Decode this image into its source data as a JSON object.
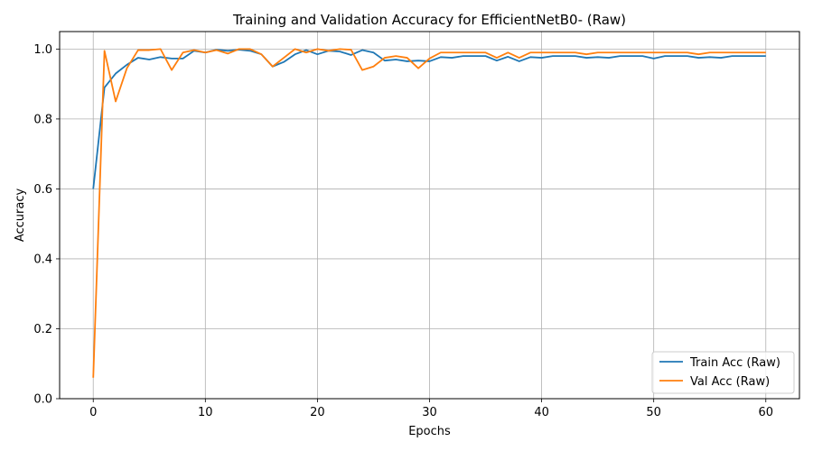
{
  "chart_data": {
    "type": "line",
    "title": "Training and Validation Accuracy for EfficientNetB0- (Raw)",
    "xlabel": "Epochs",
    "ylabel": "Accuracy",
    "xlim": [
      -3,
      63
    ],
    "ylim": [
      0.0,
      1.05
    ],
    "xticks": [
      0,
      10,
      20,
      30,
      40,
      50,
      60
    ],
    "yticks": [
      0.0,
      0.2,
      0.4,
      0.6,
      0.8,
      1.0
    ],
    "xtick_labels": [
      "0",
      "10",
      "20",
      "30",
      "40",
      "50",
      "60"
    ],
    "ytick_labels": [
      "0.0",
      "0.2",
      "0.4",
      "0.6",
      "0.8",
      "1.0"
    ],
    "grid": true,
    "legend_position": "bottom-right",
    "series": [
      {
        "name": "Train Acc (Raw)",
        "color": "#1f77b4",
        "x": [
          0,
          1,
          2,
          3,
          4,
          5,
          6,
          7,
          8,
          9,
          10,
          11,
          12,
          13,
          14,
          15,
          16,
          17,
          18,
          19,
          20,
          21,
          22,
          23,
          24,
          25,
          26,
          27,
          28,
          29,
          30,
          31,
          32,
          33,
          34,
          35,
          36,
          37,
          38,
          39,
          40,
          41,
          42,
          43,
          44,
          45,
          46,
          47,
          48,
          49,
          50,
          51,
          52,
          53,
          54,
          55,
          56,
          57,
          58,
          59,
          60
        ],
        "values": [
          0.6,
          0.89,
          0.93,
          0.955,
          0.975,
          0.97,
          0.977,
          0.973,
          0.973,
          0.995,
          0.99,
          0.998,
          0.995,
          0.998,
          0.995,
          0.985,
          0.95,
          0.963,
          0.985,
          0.997,
          0.985,
          0.995,
          0.993,
          0.983,
          0.997,
          0.99,
          0.967,
          0.97,
          0.965,
          0.967,
          0.965,
          0.977,
          0.975,
          0.98,
          0.98,
          0.98,
          0.967,
          0.978,
          0.965,
          0.977,
          0.975,
          0.98,
          0.98,
          0.98,
          0.975,
          0.977,
          0.975,
          0.98,
          0.98,
          0.98,
          0.973,
          0.98,
          0.98,
          0.98,
          0.975,
          0.977,
          0.975,
          0.98,
          0.98,
          0.98,
          0.98
        ]
      },
      {
        "name": "Val Acc (Raw)",
        "color": "#ff7f0e",
        "x": [
          0,
          1,
          2,
          3,
          4,
          5,
          6,
          7,
          8,
          9,
          10,
          11,
          12,
          13,
          14,
          15,
          16,
          17,
          18,
          19,
          20,
          21,
          22,
          23,
          24,
          25,
          26,
          27,
          28,
          29,
          30,
          31,
          32,
          33,
          34,
          35,
          36,
          37,
          38,
          39,
          40,
          41,
          42,
          43,
          44,
          45,
          46,
          47,
          48,
          49,
          50,
          51,
          52,
          53,
          54,
          55,
          56,
          57,
          58,
          59,
          60
        ],
        "values": [
          0.06,
          0.995,
          0.85,
          0.945,
          0.997,
          0.997,
          1.0,
          0.94,
          0.99,
          0.997,
          0.99,
          0.997,
          0.987,
          1.0,
          1.0,
          0.985,
          0.95,
          0.975,
          1.0,
          0.99,
          1.0,
          0.995,
          1.0,
          0.998,
          0.94,
          0.95,
          0.975,
          0.98,
          0.975,
          0.945,
          0.973,
          0.99,
          0.99,
          0.99,
          0.99,
          0.99,
          0.975,
          0.99,
          0.975,
          0.99,
          0.99,
          0.99,
          0.99,
          0.99,
          0.985,
          0.99,
          0.99,
          0.99,
          0.99,
          0.99,
          0.99,
          0.99,
          0.99,
          0.99,
          0.985,
          0.99,
          0.99,
          0.99,
          0.99,
          0.99,
          0.99
        ]
      }
    ]
  }
}
